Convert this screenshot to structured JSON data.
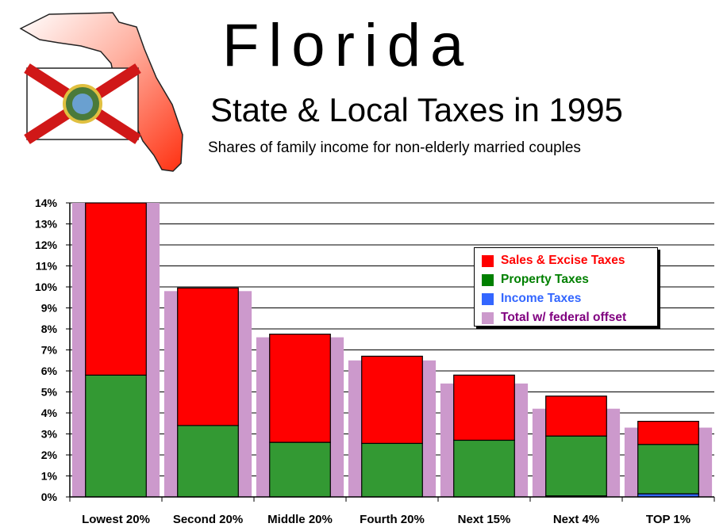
{
  "header": {
    "title": "Florida",
    "subtitle": "State & Local Taxes in 1995",
    "caption": "Shares of family income for non-elderly married couples"
  },
  "chart_data": {
    "type": "bar",
    "stacked": true,
    "categories": [
      "Lowest 20%",
      "Second 20%",
      "Middle 20%",
      "Fourth 20%",
      "Next 15%",
      "Next 4%",
      "TOP 1%"
    ],
    "series": [
      {
        "name": "Income Taxes",
        "color": "#3366ff",
        "values": [
          0,
          0,
          0,
          0,
          0,
          0.05,
          0.15
        ]
      },
      {
        "name": "Property Taxes",
        "color": "#339933",
        "values": [
          5.8,
          3.4,
          2.6,
          2.55,
          2.7,
          2.85,
          2.35
        ]
      },
      {
        "name": "Sales & Excise Taxes",
        "color": "#ff0000",
        "values": [
          8.2,
          6.55,
          5.15,
          4.15,
          3.1,
          1.9,
          1.1
        ]
      }
    ],
    "background_series": {
      "name": "Total w/ federal offset",
      "color": "#cc99cc",
      "values": [
        14.0,
        9.8,
        7.6,
        6.5,
        5.4,
        4.2,
        3.3
      ]
    },
    "ylim": [
      0,
      14
    ],
    "yticks": [
      "0%",
      "1%",
      "2%",
      "3%",
      "4%",
      "5%",
      "6%",
      "7%",
      "8%",
      "9%",
      "10%",
      "11%",
      "12%",
      "13%",
      "14%"
    ],
    "grid": true,
    "legend_position": "top-right",
    "legend": [
      {
        "label": "Sales & Excise Taxes",
        "color": "#ff0000",
        "text_color": "#ff0000"
      },
      {
        "label": "Property Taxes",
        "color": "#008000",
        "text_color": "#008000"
      },
      {
        "label": "Income Taxes",
        "color": "#3366ff",
        "text_color": "#3366ff"
      },
      {
        "label": "Total w/ federal offset",
        "color": "#cc99cc",
        "text_color": "#800080"
      }
    ]
  },
  "graphics": {
    "map_icon": "florida-map-with-state-flag"
  }
}
